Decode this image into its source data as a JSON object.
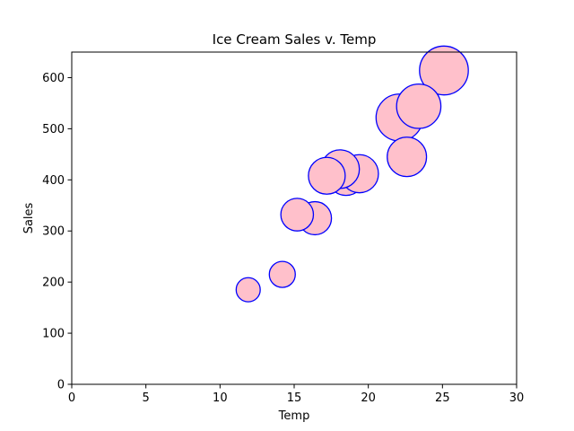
{
  "chart_data": {
    "type": "scatter",
    "title": "Ice Cream Sales v. Temp",
    "xlabel": "Temp",
    "ylabel": "Sales",
    "xlim": [
      0,
      30
    ],
    "ylim": [
      0,
      650
    ],
    "xticks": [
      0,
      5,
      10,
      15,
      20,
      25,
      30
    ],
    "yticks": [
      0,
      100,
      200,
      300,
      400,
      500,
      600
    ],
    "grid": false,
    "marker_fill": "#ffc0cb",
    "marker_edge": "#0000ff",
    "points": [
      {
        "x": 11.9,
        "y": 185,
        "size": 180
      },
      {
        "x": 14.2,
        "y": 215,
        "size": 210
      },
      {
        "x": 16.4,
        "y": 325,
        "size": 340
      },
      {
        "x": 15.2,
        "y": 332,
        "size": 330
      },
      {
        "x": 18.5,
        "y": 406,
        "size": 430
      },
      {
        "x": 22.1,
        "y": 522,
        "size": 680
      },
      {
        "x": 19.4,
        "y": 412,
        "size": 450
      },
      {
        "x": 25.1,
        "y": 614,
        "size": 740
      },
      {
        "x": 23.4,
        "y": 544,
        "size": 610
      },
      {
        "x": 18.1,
        "y": 421,
        "size": 460
      },
      {
        "x": 22.6,
        "y": 445,
        "size": 480
      },
      {
        "x": 17.2,
        "y": 408,
        "size": 420
      }
    ]
  }
}
